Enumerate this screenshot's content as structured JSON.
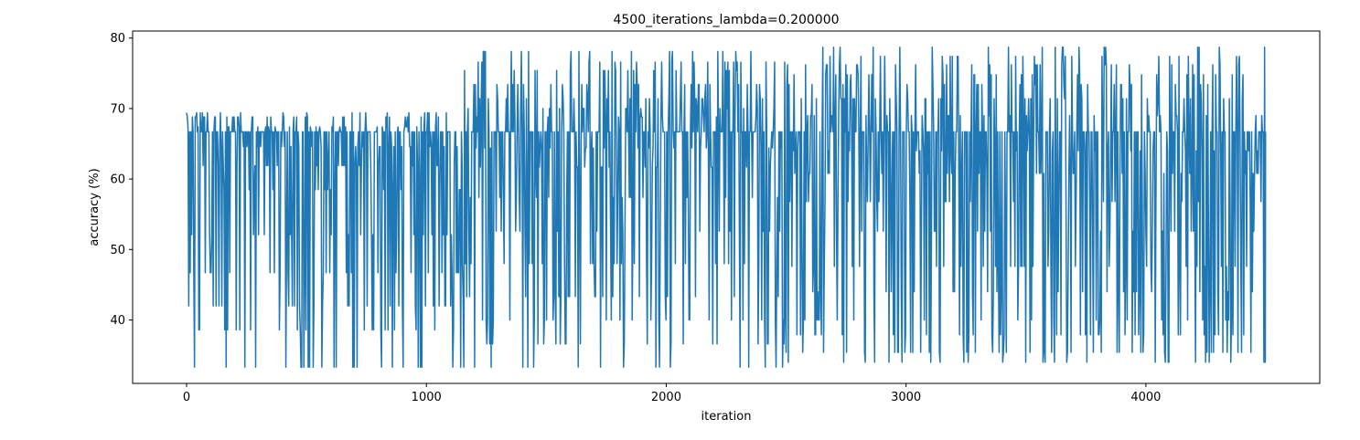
{
  "chart_data": {
    "type": "line",
    "title": "4500_iterations_lambda=0.200000",
    "xlabel": "iteration",
    "ylabel": "accuracy (%)",
    "xlim": [
      -225,
      4725
    ],
    "ylim": [
      31.0,
      81.0
    ],
    "x_ticks": [
      0,
      1000,
      2000,
      3000,
      4000
    ],
    "y_ticks": [
      40,
      50,
      60,
      70,
      80
    ],
    "grid": false,
    "legend": "none",
    "series": [
      {
        "color": "#1f77b4",
        "x_range": [
          0,
          4499
        ],
        "segments": [
          {
            "x_start": 0,
            "x_end": 1150,
            "baseline": 66.7,
            "low_values": [
              33.3,
              38.6,
              42.0,
              46.7,
              52.1,
              58.5,
              61.9,
              64.6
            ],
            "high_values": [
              66.7,
              67.4,
              68.8,
              69.4
            ]
          },
          {
            "x_start": 1150,
            "x_end": 2500,
            "baseline": 66.7,
            "low_values": [
              33.3,
              36.6,
              40.0,
              43.3,
              48.0,
              52.6,
              57.4,
              61.7,
              64.4
            ],
            "high_values": [
              68.8,
              70.0,
              71.4,
              73.4,
              75.4,
              76.6,
              78.1
            ]
          },
          {
            "x_start": 2500,
            "x_end": 4499,
            "baseline": 66.7,
            "low_values": [
              34.0,
              35.4,
              37.9,
              40.0,
              44.0,
              47.6,
              52.6,
              56.8,
              60.8,
              64.0
            ],
            "high_values": [
              69.0,
              71.4,
              73.4,
              74.8,
              76.2,
              77.4,
              78.7
            ]
          }
        ]
      }
    ]
  }
}
